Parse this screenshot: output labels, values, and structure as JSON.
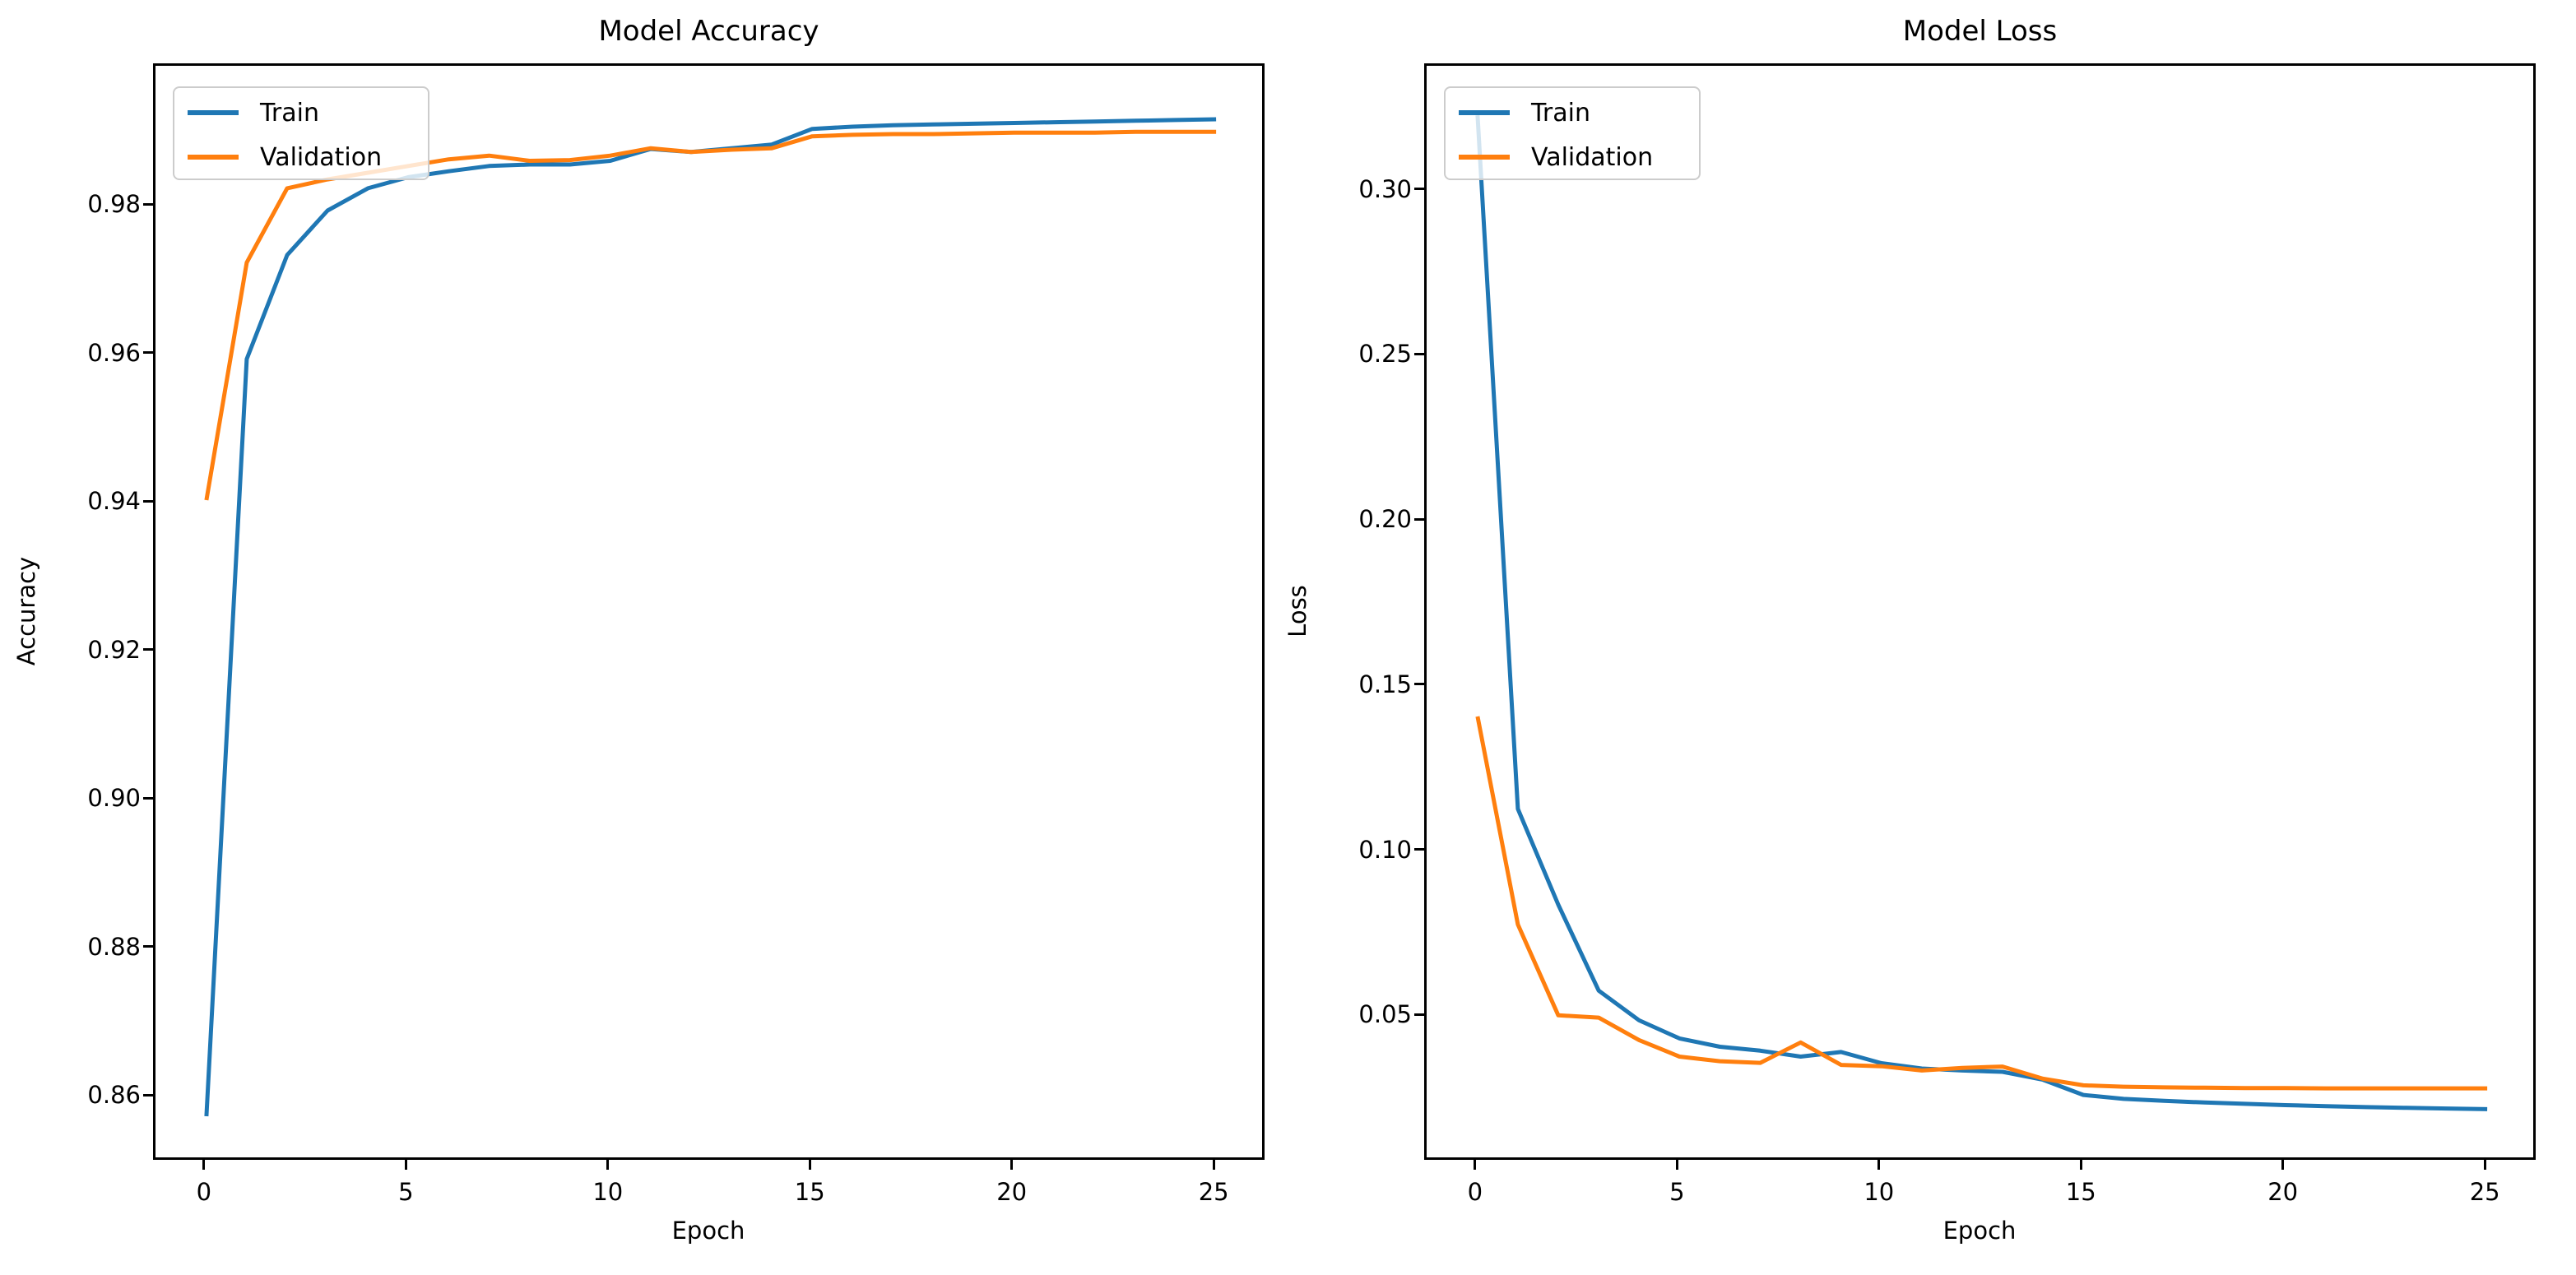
{
  "figure": {
    "background": "#ffffff"
  },
  "colors": {
    "train": "#1f77b4",
    "validation": "#ff7f0e",
    "spine": "#000000",
    "text": "#000000",
    "legend_border": "#cccccc"
  },
  "legend": {
    "entries": [
      {
        "label": "Train"
      },
      {
        "label": "Validation"
      }
    ]
  },
  "chart_data": [
    {
      "id": "accuracy",
      "type": "line",
      "title": "Model Accuracy",
      "xlabel": "Epoch",
      "ylabel": "Accuracy",
      "legend_position": "upper left",
      "grid": false,
      "xlim": [
        -1.26,
        26.26
      ],
      "ylim": [
        0.8513,
        0.999
      ],
      "xticks": [
        0,
        5,
        10,
        15,
        20,
        25
      ],
      "xtick_labels": [
        "0",
        "5",
        "10",
        "15",
        "20",
        "25"
      ],
      "yticks": [
        0.86,
        0.88,
        0.9,
        0.92,
        0.94,
        0.96,
        0.98
      ],
      "ytick_labels": [
        "0.86",
        "0.88",
        "0.90",
        "0.92",
        "0.94",
        "0.96",
        "0.98"
      ],
      "x": [
        0,
        1,
        2,
        3,
        4,
        5,
        6,
        7,
        8,
        9,
        10,
        11,
        12,
        13,
        14,
        15,
        16,
        17,
        18,
        19,
        20,
        21,
        22,
        23,
        24,
        25
      ],
      "series": [
        {
          "name": "Train",
          "color": "#1f77b4",
          "values": [
            0.8575,
            0.9595,
            0.9735,
            0.9795,
            0.9825,
            0.984,
            0.9848,
            0.9855,
            0.9857,
            0.9857,
            0.9862,
            0.9878,
            0.9874,
            0.9879,
            0.9884,
            0.9905,
            0.9908,
            0.991,
            0.9911,
            0.9912,
            0.9913,
            0.9914,
            0.9915,
            0.9916,
            0.9917,
            0.9918
          ]
        },
        {
          "name": "Validation",
          "color": "#ff7f0e",
          "values": [
            0.9405,
            0.9725,
            0.9825,
            0.9837,
            0.9846,
            0.9855,
            0.9864,
            0.9869,
            0.9862,
            0.9863,
            0.9869,
            0.9879,
            0.9874,
            0.9877,
            0.9879,
            0.9895,
            0.9897,
            0.9898,
            0.9898,
            0.9899,
            0.99,
            0.99,
            0.99,
            0.9901,
            0.9901,
            0.9901
          ]
        }
      ]
    },
    {
      "id": "loss",
      "type": "line",
      "title": "Model Loss",
      "xlabel": "Epoch",
      "ylabel": "Loss",
      "legend_position": "upper left",
      "grid": false,
      "xlim": [
        -1.26,
        26.26
      ],
      "ylim": [
        0.006,
        0.338
      ],
      "xticks": [
        0,
        5,
        10,
        15,
        20,
        25
      ],
      "xtick_labels": [
        "0",
        "5",
        "10",
        "15",
        "20",
        "25"
      ],
      "yticks": [
        0.05,
        0.1,
        0.15,
        0.2,
        0.25,
        0.3
      ],
      "ytick_labels": [
        "0.05",
        "0.10",
        "0.15",
        "0.20",
        "0.25",
        "0.30"
      ],
      "x": [
        0,
        1,
        2,
        3,
        4,
        5,
        6,
        7,
        8,
        9,
        10,
        11,
        12,
        13,
        14,
        15,
        16,
        17,
        18,
        19,
        20,
        21,
        22,
        23,
        24,
        25
      ],
      "series": [
        {
          "name": "Train",
          "color": "#1f77b4",
          "values": [
            0.323,
            0.113,
            0.084,
            0.058,
            0.049,
            0.0435,
            0.041,
            0.0398,
            0.038,
            0.0394,
            0.036,
            0.0344,
            0.0338,
            0.0334,
            0.031,
            0.0264,
            0.0252,
            0.0246,
            0.0241,
            0.0237,
            0.0233,
            0.023,
            0.0227,
            0.0225,
            0.0223,
            0.0221
          ]
        },
        {
          "name": "Validation",
          "color": "#ff7f0e",
          "values": [
            0.141,
            0.078,
            0.0505,
            0.0498,
            0.043,
            0.038,
            0.0366,
            0.0361,
            0.0423,
            0.0355,
            0.0351,
            0.0338,
            0.0346,
            0.035,
            0.0313,
            0.0293,
            0.0289,
            0.0287,
            0.0286,
            0.0285,
            0.0285,
            0.0284,
            0.0284,
            0.0284,
            0.0284,
            0.0284
          ]
        }
      ]
    }
  ]
}
